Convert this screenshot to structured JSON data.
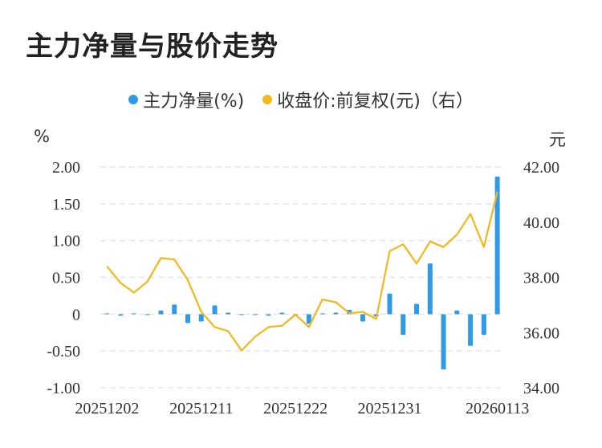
{
  "title": "主力净量与股价走势",
  "legend": {
    "series1": "主力净量(%)",
    "series2": "收盘价:前复权(元)（右）"
  },
  "axis_units": {
    "left": "%",
    "right": "元"
  },
  "colors": {
    "bar": "#2f9ae8",
    "line": "#f3b71a",
    "grid": "#e6e6e6",
    "text": "#333333"
  },
  "chart_data": {
    "type": "bar+line",
    "x_ticks": [
      "20251202",
      "20251211",
      "20251222",
      "20251231",
      "20260113"
    ],
    "y_left": {
      "label": "%",
      "ticks": [
        "2.00",
        "1.50",
        "1.00",
        "0.50",
        "0",
        "-0.50",
        "-1.00"
      ],
      "range": [
        -1.0,
        2.0
      ]
    },
    "y_right": {
      "label": "元",
      "ticks": [
        "42.00",
        "40.00",
        "38.00",
        "36.00",
        "34.00"
      ],
      "range": [
        34.0,
        42.0
      ]
    },
    "series": [
      {
        "name": "主力净量(%)",
        "type": "bar",
        "axis": "left",
        "values": [
          0.01,
          -0.02,
          0.01,
          -0.01,
          0.05,
          0.13,
          -0.12,
          -0.1,
          0.12,
          0.02,
          -0.01,
          0.0,
          -0.02,
          0.02,
          0.0,
          -0.13,
          0.01,
          0.02,
          0.06,
          -0.1,
          -0.03,
          0.28,
          -0.28,
          0.14,
          0.69,
          -0.75,
          0.05,
          -0.43,
          -0.28,
          1.87
        ]
      },
      {
        "name": "收盘价:前复权(元)（右）",
        "type": "line",
        "axis": "right",
        "values": [
          38.4,
          37.8,
          37.45,
          37.85,
          38.7,
          38.65,
          37.9,
          36.75,
          36.2,
          36.05,
          35.35,
          35.85,
          36.2,
          36.25,
          36.65,
          36.2,
          37.2,
          37.1,
          36.7,
          36.75,
          36.5,
          38.95,
          39.2,
          38.5,
          39.3,
          39.1,
          39.55,
          40.3,
          39.1,
          41.1
        ]
      }
    ]
  }
}
